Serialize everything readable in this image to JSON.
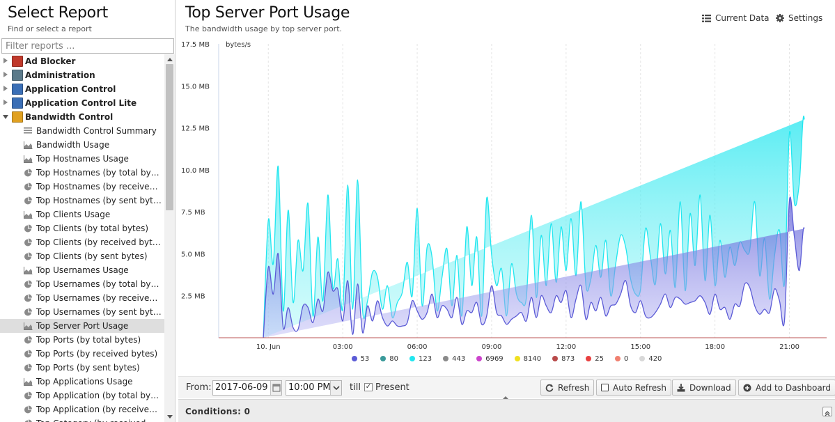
{
  "left_panel": {
    "title": "Select Report",
    "subtitle": "Find or select a report",
    "filter_placeholder": "Filter reports ...",
    "categories": [
      {
        "label": "Ad Blocker",
        "icon": "ad-blocker-icon",
        "color": "#c0392b",
        "expanded": false
      },
      {
        "label": "Administration",
        "icon": "administration-icon",
        "color": "#5b7a8a",
        "expanded": false
      },
      {
        "label": "Application Control",
        "icon": "application-control-icon",
        "color": "#3b6fb6",
        "expanded": false
      },
      {
        "label": "Application Control Lite",
        "icon": "application-control-lite-icon",
        "color": "#3b6fb6",
        "expanded": false
      },
      {
        "label": "Bandwidth Control",
        "icon": "bandwidth-control-icon",
        "color": "#e0a020",
        "expanded": true
      }
    ],
    "reports": [
      {
        "label": "Bandwidth Control Summary",
        "icon": "text-report-icon"
      },
      {
        "label": "Bandwidth Usage",
        "icon": "area-chart-icon"
      },
      {
        "label": "Top Hostnames Usage",
        "icon": "area-chart-icon"
      },
      {
        "label": "Top Hostnames (by total bytes)",
        "icon": "pie-chart-icon"
      },
      {
        "label": "Top Hostnames (by received bytes)",
        "icon": "pie-chart-icon"
      },
      {
        "label": "Top Hostnames (by sent bytes)",
        "icon": "pie-chart-icon"
      },
      {
        "label": "Top Clients Usage",
        "icon": "area-chart-icon"
      },
      {
        "label": "Top Clients (by total bytes)",
        "icon": "pie-chart-icon"
      },
      {
        "label": "Top Clients (by received bytes)",
        "icon": "pie-chart-icon"
      },
      {
        "label": "Top Clients (by sent bytes)",
        "icon": "pie-chart-icon"
      },
      {
        "label": "Top Usernames Usage",
        "icon": "area-chart-icon"
      },
      {
        "label": "Top Usernames (by total bytes)",
        "icon": "pie-chart-icon"
      },
      {
        "label": "Top Usernames (by received bytes)",
        "icon": "pie-chart-icon"
      },
      {
        "label": "Top Usernames (by sent bytes)",
        "icon": "pie-chart-icon"
      },
      {
        "label": "Top Server Port Usage",
        "icon": "area-chart-icon",
        "selected": true
      },
      {
        "label": "Top Ports (by total bytes)",
        "icon": "pie-chart-icon"
      },
      {
        "label": "Top Ports (by received bytes)",
        "icon": "pie-chart-icon"
      },
      {
        "label": "Top Ports (by sent bytes)",
        "icon": "pie-chart-icon"
      },
      {
        "label": "Top Applications Usage",
        "icon": "area-chart-icon"
      },
      {
        "label": "Top Application (by total bytes)",
        "icon": "pie-chart-icon"
      },
      {
        "label": "Top Application (by received bytes)",
        "icon": "pie-chart-icon"
      },
      {
        "label": "Top Category (by received bytes)",
        "icon": "pie-chart-icon"
      }
    ]
  },
  "report": {
    "title": "Top Server Port Usage",
    "subtitle": "The bandwidth usage by top server port.",
    "current_data_label": "Current Data",
    "settings_label": "Settings"
  },
  "chart_data": {
    "type": "area",
    "stacked": true,
    "ylabel": "bytes/s",
    "y_unit": "MB",
    "ylim": [
      0,
      17.5
    ],
    "y_ticks": [
      "2.5 MB",
      "5.0 MB",
      "7.5 MB",
      "10.0 MB",
      "12.5 MB",
      "15.0 MB",
      "17.5 MB"
    ],
    "y_tick_values": [
      2.5,
      5.0,
      7.5,
      10.0,
      12.5,
      15.0,
      17.5
    ],
    "x_ticks": [
      "10. Jun",
      "03:00",
      "06:00",
      "09:00",
      "12:00",
      "15:00",
      "18:00",
      "21:00"
    ],
    "x_tick_hours": [
      0,
      3,
      6,
      9,
      12,
      15,
      18,
      21
    ],
    "xlim_hours": [
      -2,
      22.5
    ],
    "grid": "vertical",
    "legend": "bottom",
    "x_hours": [
      -0.2,
      0.0,
      0.2,
      0.4,
      0.6,
      0.8,
      1.0,
      1.2,
      1.4,
      1.6,
      1.8,
      2.0,
      2.2,
      2.4,
      2.6,
      2.8,
      3.0,
      3.2,
      3.4,
      3.6,
      3.8,
      4.0,
      4.2,
      4.4,
      4.6,
      4.8,
      5.0,
      5.2,
      5.4,
      5.6,
      5.8,
      6.0,
      6.2,
      6.4,
      6.6,
      6.8,
      7.0,
      7.2,
      7.4,
      7.6,
      7.8,
      8.0,
      8.2,
      8.4,
      8.6,
      8.8,
      9.0,
      9.2,
      9.4,
      9.6,
      9.8,
      10.0,
      10.2,
      10.4,
      10.6,
      10.8,
      11.0,
      11.2,
      11.4,
      11.6,
      11.8,
      12.0,
      12.2,
      12.4,
      12.6,
      12.8,
      13.0,
      13.2,
      13.4,
      13.6,
      13.8,
      14.0,
      14.2,
      14.4,
      14.6,
      14.8,
      15.0,
      15.2,
      15.4,
      15.6,
      15.8,
      16.0,
      16.2,
      16.4,
      16.6,
      16.8,
      17.0,
      17.2,
      17.4,
      17.6,
      17.8,
      18.0,
      18.2,
      18.4,
      18.6,
      18.8,
      19.0,
      19.2,
      19.4,
      19.6,
      19.8,
      20.0,
      20.2,
      20.4,
      20.6,
      20.8,
      21.0,
      21.2,
      21.4,
      21.6,
      21.8,
      22.0,
      22.2,
      22.4
    ],
    "series": [
      {
        "name": "53",
        "color": "#5b5bd6",
        "fill": "#b9b7f5",
        "values": [
          0.0,
          4.2,
          2.6,
          5.0,
          0.6,
          1.8,
          0.6,
          0.5,
          1.9,
          1.8,
          0.9,
          2.3,
          1.6,
          3.9,
          2.8,
          2.9,
          1.0,
          3.4,
          0.2,
          3.2,
          0.3,
          1.9,
          1.0,
          2.2,
          1.2,
          0.7,
          1.0,
          0.7,
          0.7,
          0.9,
          2.2,
          1.6,
          1.1,
          1.5,
          2.6,
          1.2,
          1.9,
          1.7,
          1.2,
          2.4,
          0.8,
          1.6,
          1.5,
          2.1,
          0.8,
          1.3,
          3.1,
          1.5,
          1.3,
          0.8,
          1.1,
          1.3,
          1.5,
          1.0,
          2.4,
          1.2,
          2.5,
          1.9,
          1.5,
          2.5,
          2.1,
          2.8,
          1.2,
          2.3,
          3.1,
          1.1,
          2.1,
          1.6,
          2.4,
          1.3,
          1.9,
          2.0,
          2.6,
          3.4,
          1.9,
          1.5,
          2.2,
          1.3,
          1.2,
          1.5,
          2.0,
          2.6,
          1.8,
          2.4,
          2.3,
          2.0,
          2.1,
          2.2,
          2.5,
          2.1,
          1.4,
          2.6,
          1.7,
          1.8,
          1.1,
          2.0,
          1.9,
          3.2,
          3.0,
          1.9,
          1.4,
          1.7,
          1.5,
          2.9,
          2.2,
          1.0,
          8.2,
          6.0,
          4.0,
          6.5,
          1.0
        ]
      },
      {
        "name": "80",
        "color": "#3a9a9a",
        "fill": "#3a9a9a",
        "values": []
      },
      {
        "name": "123",
        "color": "#22e6ef",
        "fill": "#a8f7f7",
        "values": [
          0.0,
          2.8,
          1.8,
          5.2,
          1.0,
          5.8,
          1.5,
          5.3,
          2.1,
          6.2,
          0.4,
          3.7,
          0.6,
          4.6,
          0.2,
          1.8,
          0.7,
          5.7,
          1.5,
          6.2,
          1.3,
          0.3,
          2.9,
          1.4,
          0.5,
          2.4,
          0.2,
          1.4,
          2.0,
          3.6,
          0.3,
          6.1,
          0.8,
          3.9,
          2.2,
          0.4,
          1.7,
          3.6,
          0.7,
          2.5,
          0.5,
          5.0,
          1.6,
          3.9,
          0.5,
          7.0,
          1.8,
          1.6,
          2.8,
          0.5,
          3.3,
          1.3,
          0.6,
          1.4,
          4.9,
          1.2,
          3.6,
          1.2,
          5.3,
          0.8,
          4.5,
          1.2,
          5.9,
          1.4,
          5.0,
          2.0,
          1.4,
          3.9,
          1.2,
          4.5,
          0.6,
          2.4,
          3.5,
          2.0,
          1.6,
          1.1,
          0.7,
          5.2,
          3.6,
          1.7,
          4.8,
          1.2,
          4.6,
          0.6,
          5.8,
          0.8,
          5.3,
          2.1,
          6.0,
          1.3,
          5.9,
          0.5,
          4.1,
          1.8,
          4.3,
          2.3,
          3.8,
          2.0,
          2.2,
          6.2,
          2.3,
          4.2,
          0.8,
          2.0,
          4.2,
          2.2,
          4.0,
          2.0,
          5.2,
          6.5,
          1.3
        ]
      },
      {
        "name": "443",
        "color": "#8a8a8a",
        "fill": "#8a8a8a",
        "values": []
      },
      {
        "name": "6969",
        "color": "#cc44cc",
        "fill": "#cc44cc",
        "values": []
      },
      {
        "name": "8140",
        "color": "#f0e020",
        "fill": "#f0e020",
        "values": []
      },
      {
        "name": "873",
        "color": "#b84a4a",
        "fill": "#b84a4a",
        "values": []
      },
      {
        "name": "25",
        "color": "#e84040",
        "fill": "#e84040",
        "values": []
      },
      {
        "name": "0",
        "color": "#f08070",
        "fill": "#f08070",
        "values": []
      },
      {
        "name": "420",
        "color": "#d8d8d8",
        "fill": "#d8d8d8",
        "values": []
      }
    ]
  },
  "toolbar": {
    "from_label": "From:",
    "from_date": "2017-06-09",
    "from_time": "10:00 PM",
    "till_label": "till",
    "present_checked": "✓",
    "present_label": "Present",
    "refresh_label": "Refresh",
    "auto_refresh_label": "Auto Refresh",
    "download_label": "Download",
    "add_dashboard_label": "Add to Dashboard"
  },
  "conditions": {
    "label": "Conditions: 0"
  }
}
